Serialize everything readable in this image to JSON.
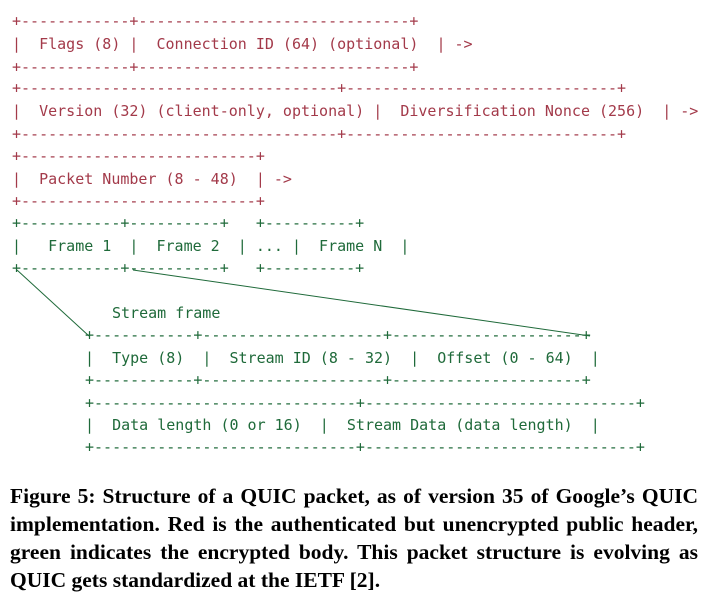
{
  "diagram": {
    "public_header": {
      "row1": {
        "border_top": "+------------+------------------------------+",
        "content": "|  Flags (8) |  Connection ID (64) (optional)  | ->",
        "border_bottom": "+------------+------------------------------+"
      },
      "row2": {
        "border_top": "+-----------------------------------+------------------------------+",
        "content": "|  Version (32) (client-only, optional) |  Diversification Nonce (256)  | ->",
        "border_bottom": "+-----------------------------------+------------------------------+"
      },
      "row3": {
        "border_top": "+--------------------------+",
        "content": "|  Packet Number (8 - 48)  | ->",
        "border_bottom": "+--------------------------+"
      }
    },
    "frames_row": {
      "border_top": "+-----------+----------+   +----------+",
      "content": "|   Frame 1  |  Frame 2  | ... |  Frame N  |",
      "border_bottom": "+-----------+----------+   +----------+"
    },
    "stream_frame": {
      "label": "Stream frame",
      "row1": {
        "border_top": "+-----------+--------------------+---------------------+",
        "content": "|  Type (8)  |  Stream ID (8 - 32)  |  Offset (0 - 64)  |",
        "border_bottom": "+-----------+--------------------+---------------------+"
      },
      "row2": {
        "border_top": "+-----------------------------+------------------------------+",
        "content": "|  Data length (0 or 16)  |  Stream Data (data length)  |",
        "border_bottom": "+-----------------------------+------------------------------+"
      }
    },
    "colors": {
      "public_header": "#a33a4a",
      "encrypted_body": "#1f6a3a"
    }
  },
  "caption": {
    "text": "Figure 5: Structure of a QUIC packet, as of version 35 of Google’s QUIC implementation. Red is the authenticated but unencrypted pub­lic header, green indicates the encrypted body. This packet structure is evolving as QUIC gets standardized at the IETF [2]."
  }
}
